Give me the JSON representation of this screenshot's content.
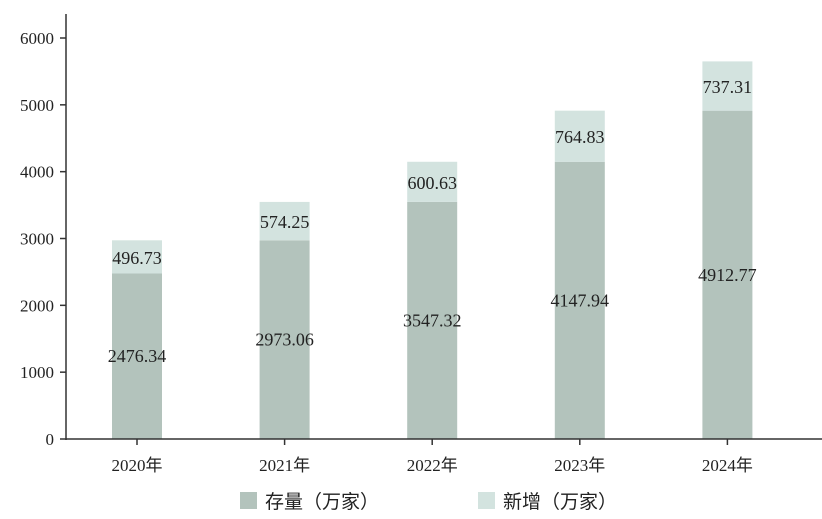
{
  "chart_data": {
    "type": "bar",
    "stacked": true,
    "categories": [
      "2020年",
      "2021年",
      "2022年",
      "2023年",
      "2024年"
    ],
    "series": [
      {
        "name": "存量（万家）",
        "values": [
          2476.34,
          2973.06,
          3547.32,
          4147.94,
          4912.77
        ],
        "color": "#b3c3bc"
      },
      {
        "name": "新增（万家）",
        "values": [
          496.73,
          574.25,
          600.63,
          764.83,
          737.31
        ],
        "color": "#d3e3df"
      }
    ],
    "ylim": [
      0,
      6000
    ],
    "yticks": [
      0,
      1000,
      2000,
      3000,
      4000,
      5000,
      6000
    ],
    "grid": false,
    "legend_position": "bottom"
  }
}
